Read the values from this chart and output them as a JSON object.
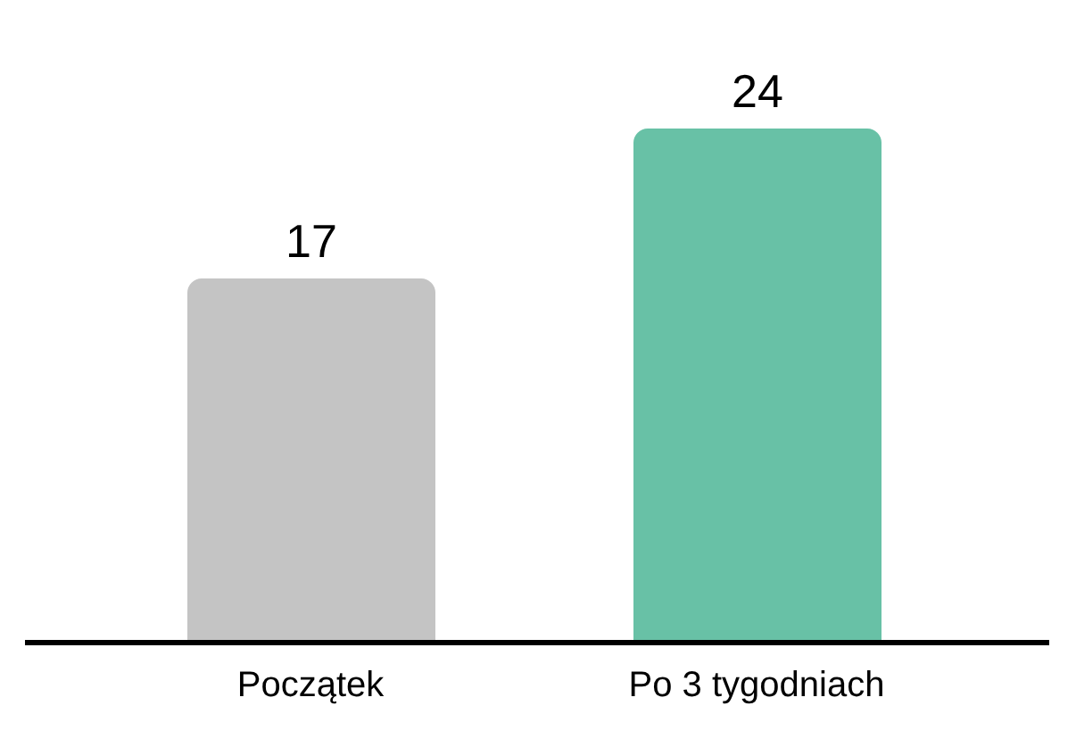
{
  "chart_data": {
    "type": "bar",
    "categories": [
      "Początek",
      "Po 3 tygodniach"
    ],
    "values": [
      17,
      24
    ],
    "colors": [
      "#c4c4c4",
      "#68c1a6"
    ],
    "data_labels": true
  }
}
